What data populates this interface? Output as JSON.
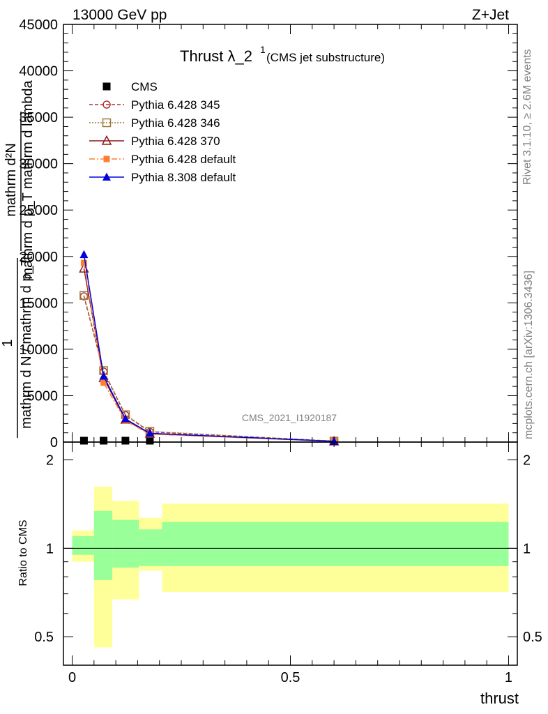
{
  "header": {
    "left": "13000 GeV pp",
    "right": "Z+Jet"
  },
  "title": {
    "main": "Thrust λ_2",
    "sup": "1",
    "sub": "(CMS jet substructure)"
  },
  "side_text": {
    "rivet": "Rivet 3.1.10, ≥ 2.6M events",
    "mcplots": "mcplots.cern.ch [arXiv:1306.3436]"
  },
  "watermark": "CMS_2021_I1920187",
  "ylabel_upper": {
    "numerator_one": "1",
    "frac_top": "mathrm d²N",
    "frac_bottom": "mathrm d p_T mathrm d lambda",
    "denominator": "mathrm d N / mathrm d p_T"
  },
  "ylabel_lower": "Ratio to CMS",
  "xlabel": "thrust",
  "chart_data": [
    {
      "type": "line",
      "panel": "main",
      "xlim": [
        -0.02,
        1.02
      ],
      "ylim": [
        0,
        45000
      ],
      "yticks": [
        0,
        5000,
        10000,
        15000,
        20000,
        25000,
        30000,
        35000,
        40000,
        45000
      ],
      "yticklabels": [
        "0",
        "5000",
        "10000",
        "15000",
        "20000",
        "25000",
        "30000",
        "35000",
        "40000",
        "45000"
      ],
      "legend_placement": "top-left",
      "series": [
        {
          "name": "CMS",
          "color": "#000000",
          "marker": "square",
          "x": [
            0.027,
            0.072,
            0.122,
            0.178
          ],
          "y": [
            0,
            0,
            0,
            0
          ]
        },
        {
          "name": "Pythia 6.428 345",
          "color": "#b03030",
          "marker": "circle-open",
          "dash": "5,3",
          "x": [
            0.027,
            0.072,
            0.122,
            0.178,
            0.6
          ],
          "y": [
            15700,
            7600,
            2900,
            1100,
            100
          ]
        },
        {
          "name": "Pythia 6.428 346",
          "color": "#9c7a3c",
          "marker": "square-open",
          "dash": "2,2",
          "x": [
            0.027,
            0.072,
            0.122,
            0.178,
            0.6
          ],
          "y": [
            15800,
            7700,
            2950,
            1150,
            100
          ]
        },
        {
          "name": "Pythia 6.428 370",
          "color": "#8b1a1a",
          "marker": "triangle-open",
          "dash": "",
          "x": [
            0.027,
            0.072,
            0.122,
            0.178,
            0.6
          ],
          "y": [
            18700,
            6900,
            2400,
            900,
            80
          ]
        },
        {
          "name": "Pythia 6.428 default",
          "color": "#ff7f32",
          "marker": "square-filled",
          "dash": "8,3,2,3",
          "x": [
            0.027,
            0.072,
            0.122,
            0.178,
            0.6
          ],
          "y": [
            19300,
            6400,
            2300,
            850,
            80
          ]
        },
        {
          "name": "Pythia 8.308 default",
          "color": "#0000dd",
          "marker": "triangle-filled",
          "dash": "",
          "x": [
            0.027,
            0.072,
            0.122,
            0.178,
            0.6
          ],
          "y": [
            20200,
            7100,
            2500,
            950,
            80
          ]
        }
      ]
    },
    {
      "type": "area",
      "panel": "ratio",
      "xlim": [
        -0.02,
        1.02
      ],
      "ylim": [
        0.4,
        2.3
      ],
      "yticks": [
        0.5,
        1,
        2
      ],
      "yticklabels": [
        "0.5",
        "1",
        "2"
      ],
      "xticks": [
        0,
        0.5,
        1
      ],
      "xticklabels": [
        "0",
        "0.5",
        "1"
      ],
      "reference_line": 1,
      "bands": [
        {
          "x": [
            0,
            0.05
          ],
          "outer": [
            0.9,
            1.15
          ],
          "inner": [
            0.95,
            1.1
          ]
        },
        {
          "x": [
            0.05,
            0.092
          ],
          "outer": [
            0.46,
            1.62
          ],
          "inner": [
            0.78,
            1.34
          ]
        },
        {
          "x": [
            0.092,
            0.153
          ],
          "outer": [
            0.67,
            1.45
          ],
          "inner": [
            0.86,
            1.25
          ]
        },
        {
          "x": [
            0.153,
            0.206
          ],
          "outer": [
            0.84,
            1.27
          ],
          "inner": [
            0.87,
            1.16
          ]
        },
        {
          "x": [
            0.206,
            1.0
          ],
          "outer": [
            0.71,
            1.42
          ],
          "inner": [
            0.87,
            1.23
          ]
        }
      ],
      "band_colors": {
        "outer": "#ffff99",
        "inner": "#99ff99"
      }
    }
  ]
}
